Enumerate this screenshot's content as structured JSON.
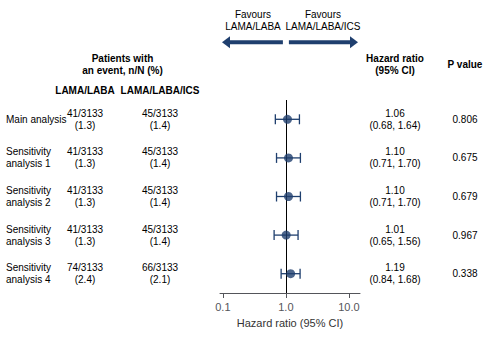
{
  "chart_data": {
    "type": "forest",
    "xlabel": "Hazard ratio (95% CI)",
    "log": "x",
    "grid": false,
    "xlim": [
      0.09,
      15.0
    ],
    "xticks": [
      0.1,
      {
        "value": 1.0,
        "label": "1.0"
      },
      {
        "value": 10.0,
        "label": "10.0"
      }
    ],
    "color": "#1f3f6e",
    "reference_line": 1.0,
    "categories": [
      "Main analysis",
      "Sensitivity\nanalysis 1",
      "Sensitivity\nanalysis 2",
      "Sensitivity\nanalysis 3",
      "Sensitivity\nanalysis 4"
    ],
    "values": [
      1.06,
      1.1,
      1.1,
      1.01,
      1.19
    ],
    "ci_low": [
      0.68,
      0.71,
      0.71,
      0.65,
      0.84
    ],
    "ci_high": [
      1.64,
      1.7,
      1.7,
      1.56,
      1.68
    ],
    "annotations": [
      "Favours\nLAMA/LABA",
      "Favours\nLAMA/LABA/ICS"
    ],
    "table": [
      {
        "header": "Patients with\nan event, n/N (%)",
        "columns": [
          {
            "header": "LAMA/LABA",
            "values": [
              "41/3133\n(1.3)",
              "41/3133\n(1.3)",
              "41/3133\n(1.3)",
              "41/3133\n(1.3)",
              "74/3133\n(2.4)"
            ]
          },
          {
            "header": "LAMA/LABA/ICS",
            "values": [
              "45/3133\n(1.4)",
              "45/3133\n(1.4)",
              "45/3133\n(1.4)",
              "45/3133\n(1.4)",
              "66/3133\n(2.1)"
            ]
          }
        ]
      },
      {
        "header": "Hazard ratio\n(95% CI)",
        "values": [
          "1.06\n(0.68, 1.64)",
          "1.10\n(0.71, 1.70)",
          "1.10\n(0.71, 1.70)",
          "1.01\n(0.65, 1.56)",
          "1.19\n(0.84, 1.68)"
        ]
      },
      {
        "header": "P value",
        "values": [
          "0.806",
          "0.675",
          "0.679",
          "0.967",
          "0.338"
        ]
      }
    ]
  }
}
